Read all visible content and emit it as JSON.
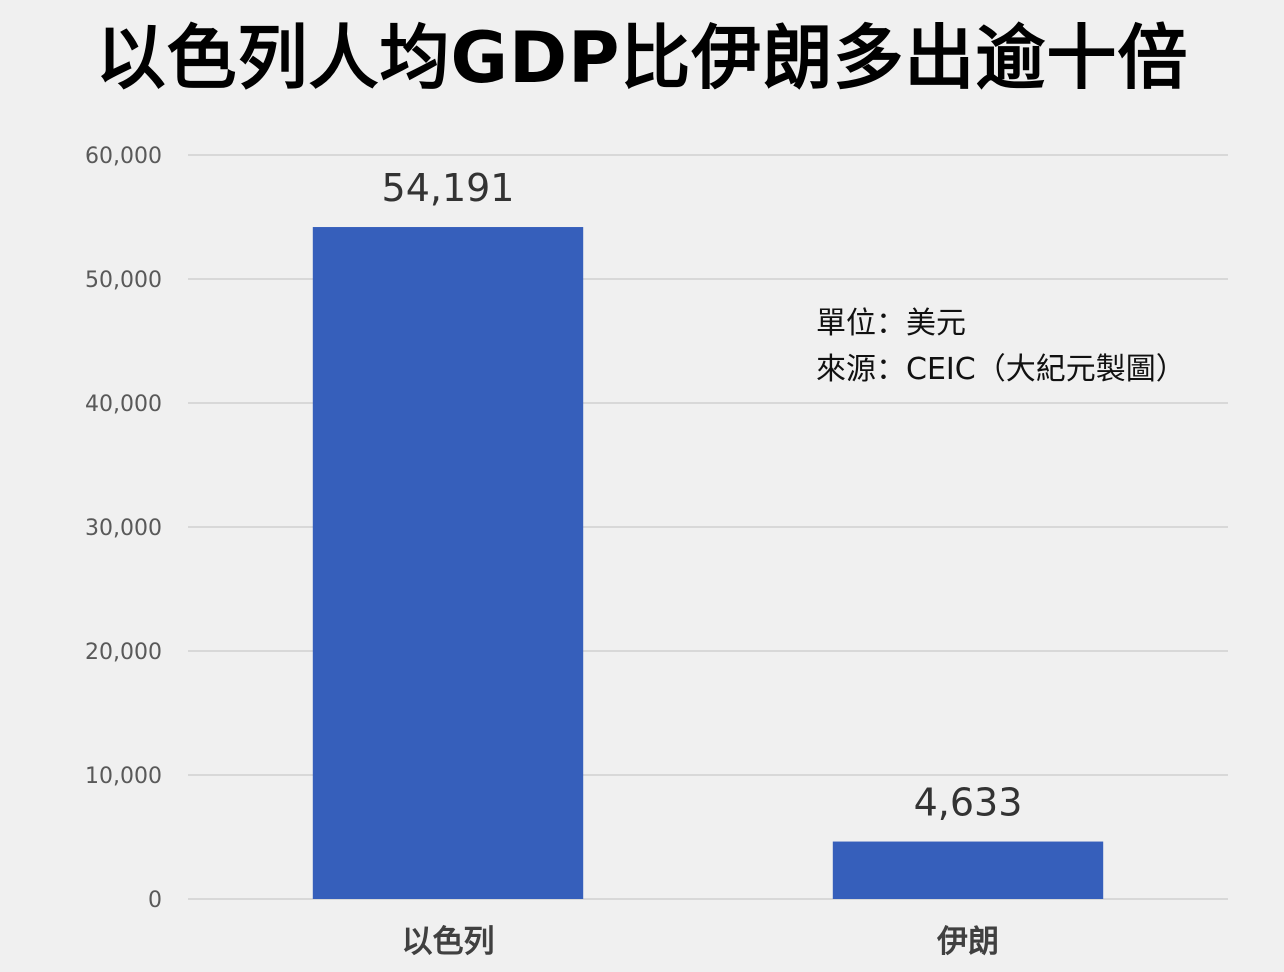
{
  "chart_data": {
    "type": "bar",
    "title": "以色列人均GDP比伊朗多出逾十倍",
    "categories": [
      "以色列",
      "伊朗"
    ],
    "values": [
      54191,
      4633
    ],
    "value_labels": [
      "54,191",
      "4,633"
    ],
    "ylim": [
      0,
      60000
    ],
    "yticks": [
      0,
      10000,
      20000,
      30000,
      40000,
      50000,
      60000
    ],
    "ytick_labels": [
      "0",
      "10,000",
      "20,000",
      "30,000",
      "40,000",
      "50,000",
      "60,000"
    ],
    "xlabel": "",
    "ylabel": "",
    "grid": true,
    "legend": "none",
    "bar_color": "#365fbb",
    "notes": {
      "unit": "單位：美元",
      "source": "來源：CEIC（大紀元製圖）"
    }
  }
}
